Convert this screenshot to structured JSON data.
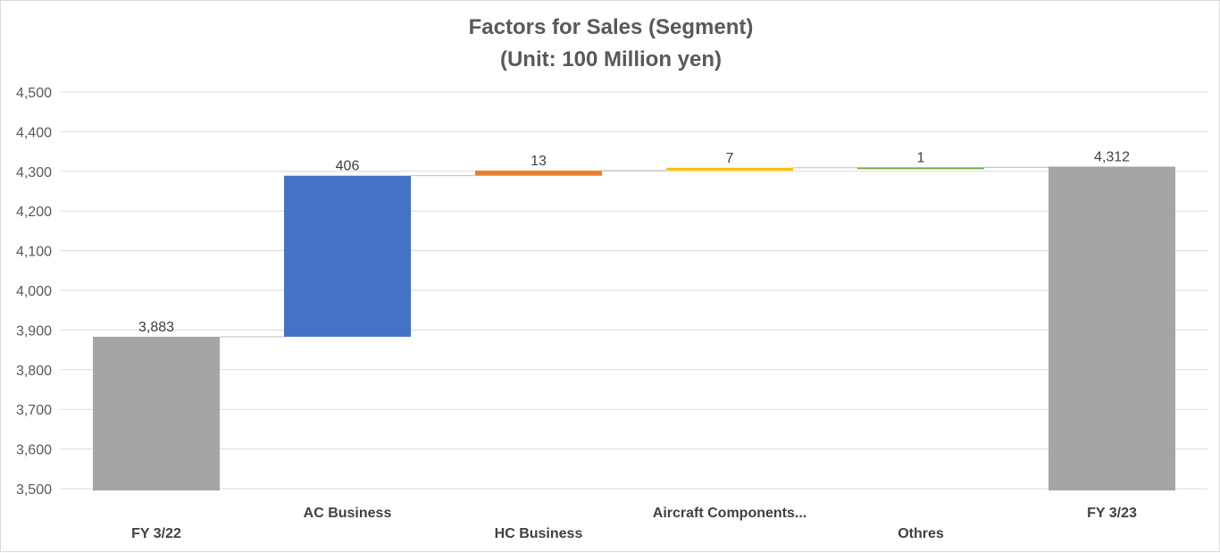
{
  "chart_data": {
    "type": "waterfall",
    "title_lines": [
      "Factors for Sales (Segment)",
      "(Unit: 100 Million yen)"
    ],
    "xlabel": "",
    "ylabel": "",
    "ylim": [
      3500,
      4500
    ],
    "yticks": [
      3500,
      3600,
      3700,
      3800,
      3900,
      4000,
      4100,
      4200,
      4300,
      4400,
      4500
    ],
    "ytick_labels": [
      "3,500",
      "3,600",
      "3,700",
      "3,800",
      "3,900",
      "4,000",
      "4,100",
      "4,200",
      "4,300",
      "4,400",
      "4,500"
    ],
    "grid": true,
    "legend": "none",
    "categories": [
      "FY 3/22",
      "AC Business",
      "HC Business",
      "Aircraft Components...",
      "Othres",
      "FY 3/23"
    ],
    "bars": [
      {
        "kind": "total",
        "start": 3500,
        "end": 3883,
        "label": "3,883",
        "color": "#a5a5a5"
      },
      {
        "kind": "increase",
        "start": 3883,
        "end": 4289,
        "label": "406",
        "color": "#4472c4"
      },
      {
        "kind": "increase",
        "start": 4289,
        "end": 4302,
        "label": "13",
        "color": "#ed7d31"
      },
      {
        "kind": "increase",
        "start": 4302,
        "end": 4309,
        "label": "7",
        "color": "#ffc000"
      },
      {
        "kind": "increase",
        "start": 4309,
        "end": 4310,
        "label": "1",
        "color": "#70ad47"
      },
      {
        "kind": "total",
        "start": 3500,
        "end": 4312,
        "label": "4,312",
        "color": "#a5a5a5"
      }
    ]
  }
}
